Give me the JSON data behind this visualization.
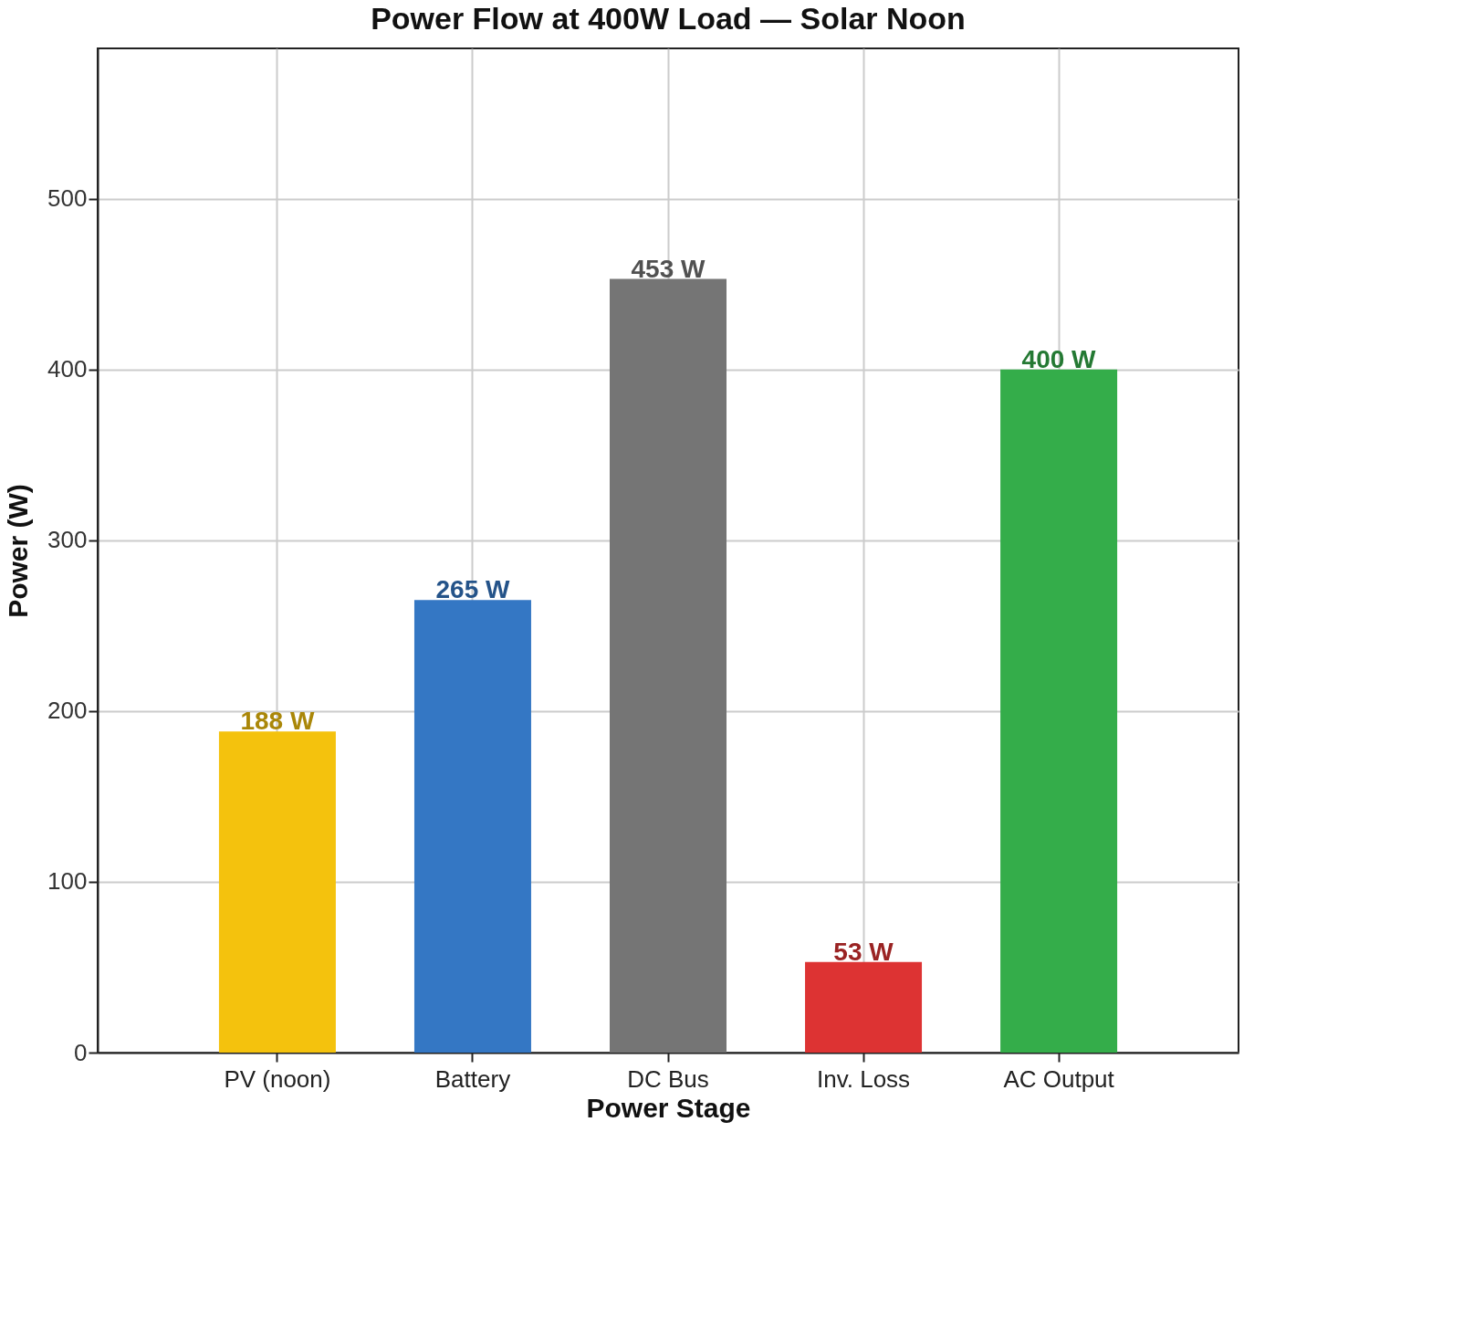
{
  "chart_data": {
    "type": "bar",
    "title": "Power Flow at 400W Load — Solar Noon",
    "xlabel": "Power Stage",
    "ylabel": "Power (W)",
    "categories": [
      "PV (noon)",
      "Battery",
      "DC Bus",
      "Inv. Loss",
      "AC Output"
    ],
    "values": [
      188,
      265,
      453,
      53,
      400
    ],
    "value_labels": [
      "188 W",
      "265 W",
      "453 W",
      "53 W",
      "400 W"
    ],
    "colors": [
      "#f4c20d",
      "#3477c4",
      "#757575",
      "#dd3333",
      "#34ad4a"
    ],
    "ylim": [
      0,
      588
    ],
    "yticks": [
      0,
      100,
      200,
      300,
      400,
      500
    ],
    "grid": true
  }
}
